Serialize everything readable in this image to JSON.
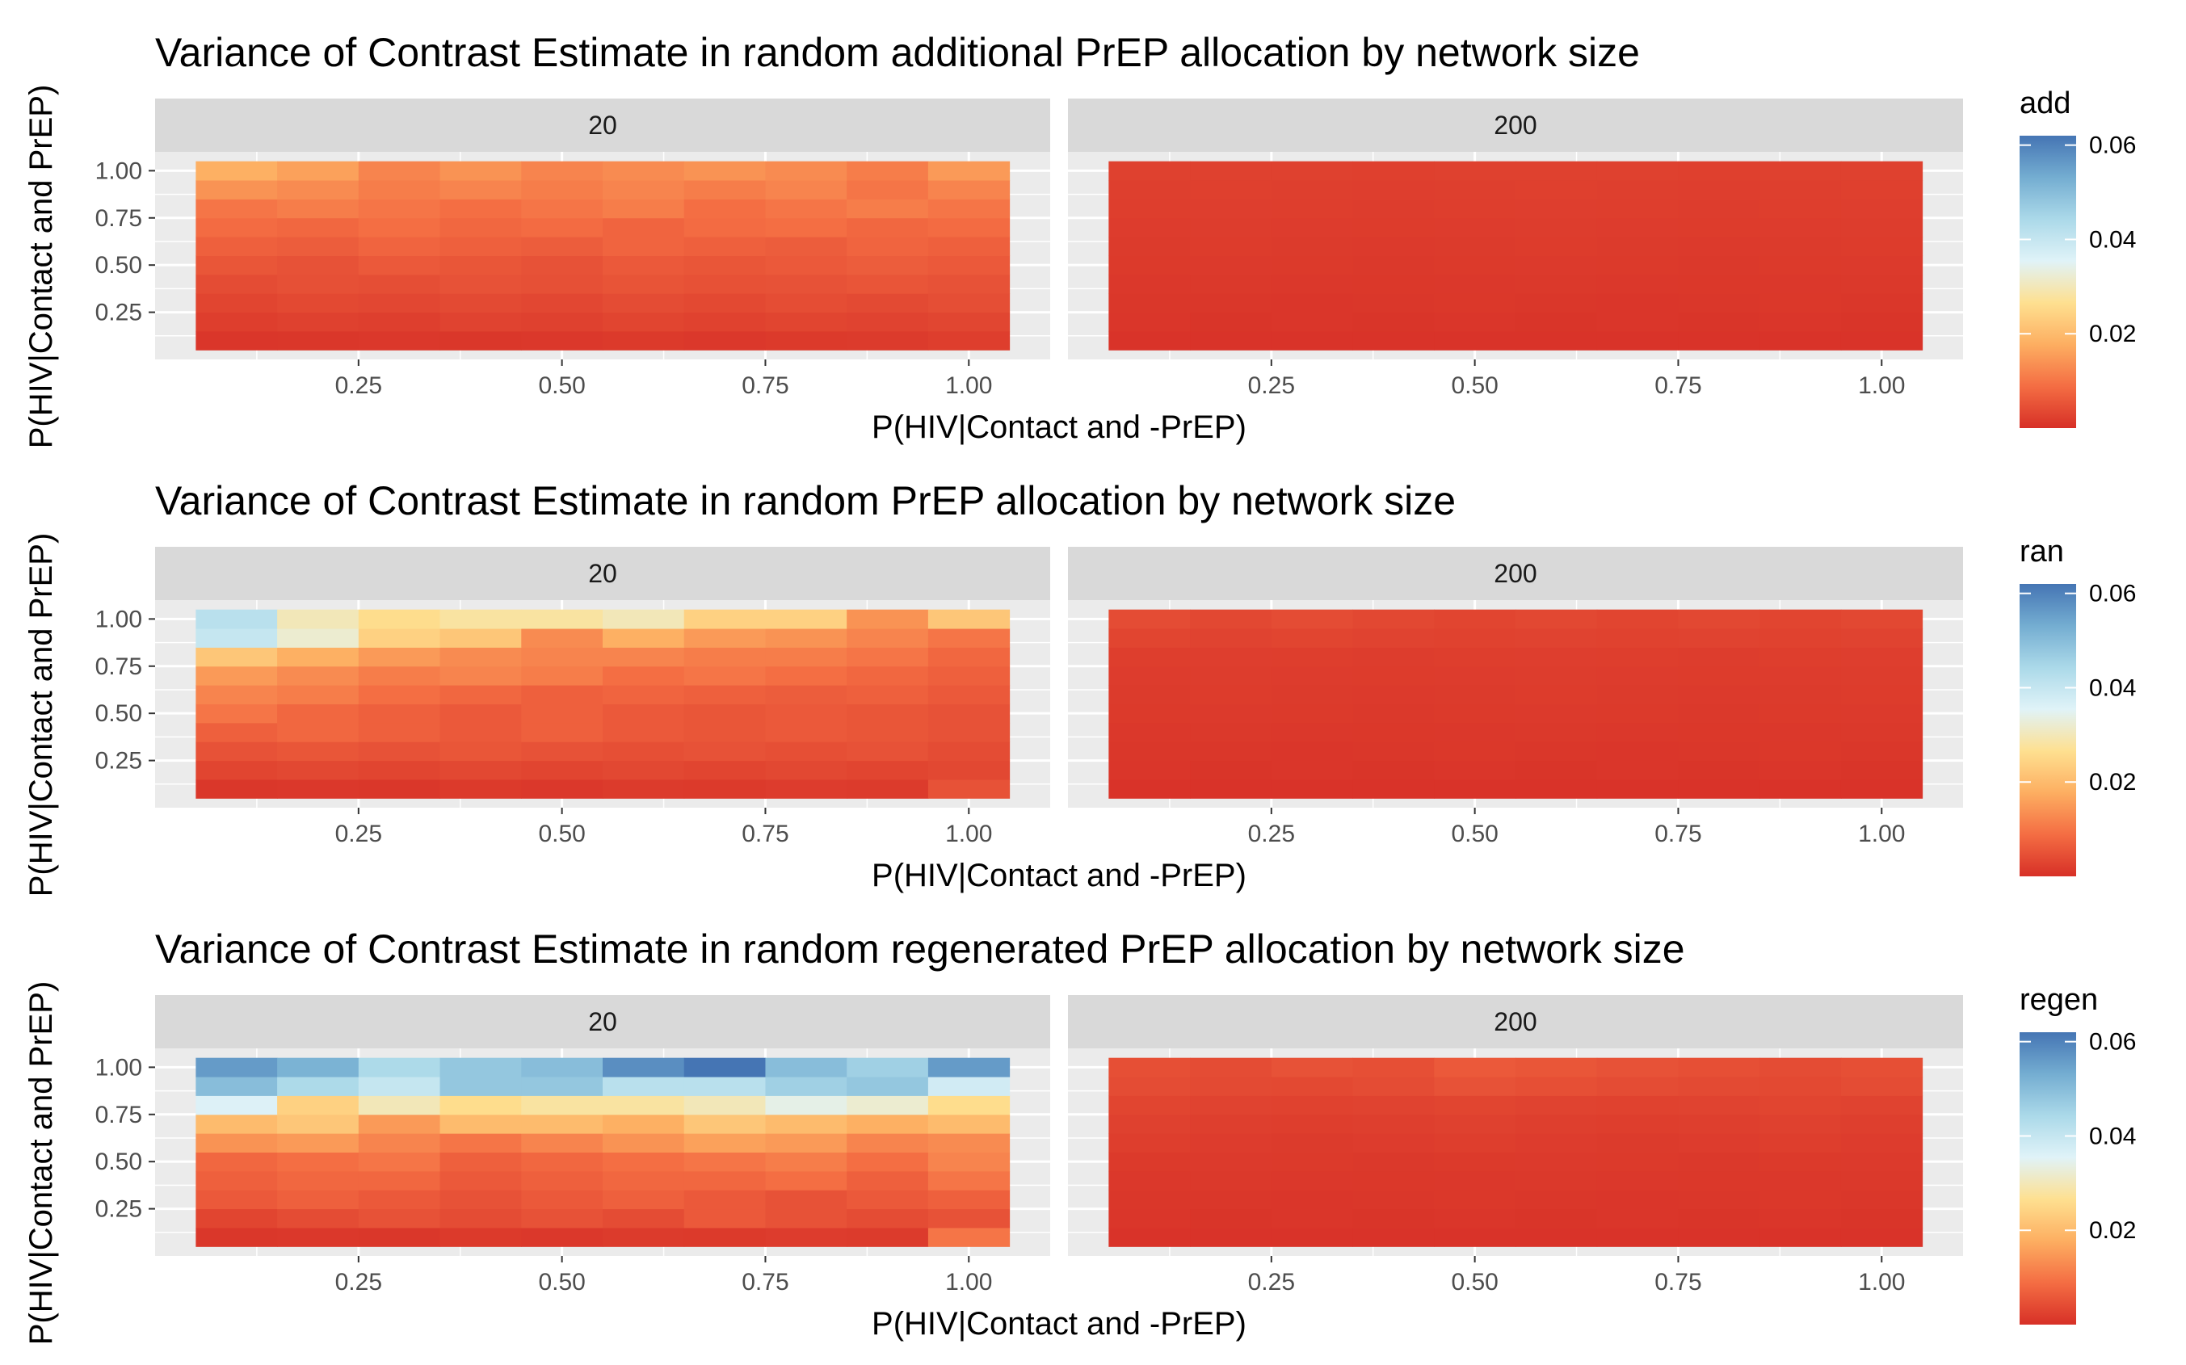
{
  "chart_data": [
    {
      "type": "heatmap",
      "title": "Variance of Contrast Estimate in random additional PrEP allocation by network size",
      "xlabel": "P(HIV|Contact and -PrEP)",
      "ylabel": "P(HIV|Contact and PrEP)",
      "facets": [
        "20",
        "200"
      ],
      "x_ticks": [
        "0.25",
        "0.50",
        "0.75",
        "1.00"
      ],
      "y_ticks": [
        "0.25",
        "0.50",
        "0.75",
        "1.00"
      ],
      "x_values": [
        0.1,
        0.2,
        0.3,
        0.4,
        0.5,
        0.6,
        0.7,
        0.8,
        0.9,
        1.0
      ],
      "y_values": [
        0.1,
        0.2,
        0.3,
        0.4,
        0.5,
        0.6,
        0.7,
        0.8,
        0.9,
        1.0
      ],
      "xlim": [
        0.0,
        1.1
      ],
      "ylim": [
        0.0,
        1.1
      ],
      "legend": {
        "title": "add",
        "ticks": [
          "0.02",
          "0.04",
          "0.06"
        ],
        "tick_values": [
          0.02,
          0.04,
          0.06
        ],
        "range": [
          0.0,
          0.062
        ]
      },
      "z": {
        "20": [
          [
            0.0008,
            0.001,
            0.0012,
            0.001,
            0.0012,
            0.0014,
            0.0012,
            0.0014,
            0.0016,
            0.002
          ],
          [
            0.002,
            0.0024,
            0.0022,
            0.0028,
            0.0024,
            0.003,
            0.0026,
            0.003,
            0.0028,
            0.0032
          ],
          [
            0.003,
            0.0036,
            0.0034,
            0.0038,
            0.0034,
            0.004,
            0.0036,
            0.0042,
            0.0038,
            0.0044
          ],
          [
            0.004,
            0.0046,
            0.0044,
            0.005,
            0.0046,
            0.0052,
            0.0048,
            0.005,
            0.0054,
            0.005
          ],
          [
            0.0055,
            0.005,
            0.006,
            0.0055,
            0.005,
            0.006,
            0.0055,
            0.006,
            0.0065,
            0.006
          ],
          [
            0.007,
            0.0065,
            0.0075,
            0.007,
            0.0065,
            0.0075,
            0.007,
            0.0065,
            0.0075,
            0.007
          ],
          [
            0.0085,
            0.008,
            0.009,
            0.008,
            0.0085,
            0.0075,
            0.0085,
            0.009,
            0.008,
            0.0085
          ],
          [
            0.01,
            0.011,
            0.01,
            0.009,
            0.01,
            0.011,
            0.009,
            0.01,
            0.011,
            0.01
          ],
          [
            0.014,
            0.013,
            0.011,
            0.012,
            0.011,
            0.012,
            0.011,
            0.012,
            0.01,
            0.012
          ],
          [
            0.018,
            0.016,
            0.012,
            0.014,
            0.012,
            0.013,
            0.014,
            0.013,
            0.011,
            0.015
          ]
        ],
        "200": [
          [
            0.0005,
            0.0005,
            0.0005,
            0.0005,
            0.0005,
            0.0005,
            0.0005,
            0.0005,
            0.0005,
            0.0005
          ],
          [
            0.0008,
            0.0007,
            0.0008,
            0.0007,
            0.0008,
            0.0007,
            0.0008,
            0.0007,
            0.0008,
            0.0007
          ],
          [
            0.001,
            0.001,
            0.0009,
            0.001,
            0.0011,
            0.001,
            0.0009,
            0.001,
            0.0011,
            0.001
          ],
          [
            0.0012,
            0.0013,
            0.0012,
            0.0011,
            0.0012,
            0.0013,
            0.0012,
            0.0011,
            0.0012,
            0.0013
          ],
          [
            0.0014,
            0.0015,
            0.0014,
            0.0013,
            0.0014,
            0.0015,
            0.0014,
            0.0013,
            0.0014,
            0.0015
          ],
          [
            0.0016,
            0.0017,
            0.0016,
            0.0015,
            0.0016,
            0.0017,
            0.0016,
            0.0015,
            0.0016,
            0.0017
          ],
          [
            0.0018,
            0.0019,
            0.0018,
            0.0017,
            0.0018,
            0.0019,
            0.0018,
            0.0017,
            0.0018,
            0.0019
          ],
          [
            0.002,
            0.0021,
            0.002,
            0.0019,
            0.002,
            0.0021,
            0.002,
            0.0019,
            0.002,
            0.0021
          ],
          [
            0.0022,
            0.0023,
            0.0022,
            0.0021,
            0.0022,
            0.0023,
            0.0022,
            0.0021,
            0.0022,
            0.0023
          ],
          [
            0.0024,
            0.0025,
            0.0024,
            0.0023,
            0.0024,
            0.0025,
            0.0024,
            0.0023,
            0.0024,
            0.0025
          ]
        ]
      }
    },
    {
      "type": "heatmap",
      "title": "Variance of Contrast Estimate in random PrEP allocation by network size",
      "xlabel": "P(HIV|Contact and -PrEP)",
      "ylabel": "P(HIV|Contact and PrEP)",
      "facets": [
        "20",
        "200"
      ],
      "x_ticks": [
        "0.25",
        "0.50",
        "0.75",
        "1.00"
      ],
      "y_ticks": [
        "0.25",
        "0.50",
        "0.75",
        "1.00"
      ],
      "x_values": [
        0.1,
        0.2,
        0.3,
        0.4,
        0.5,
        0.6,
        0.7,
        0.8,
        0.9,
        1.0
      ],
      "y_values": [
        0.1,
        0.2,
        0.3,
        0.4,
        0.5,
        0.6,
        0.7,
        0.8,
        0.9,
        1.0
      ],
      "xlim": [
        0.0,
        1.1
      ],
      "ylim": [
        0.0,
        1.1
      ],
      "legend": {
        "title": "ran",
        "ticks": [
          "0.02",
          "0.04",
          "0.06"
        ],
        "tick_values": [
          0.02,
          0.04,
          0.06
        ],
        "range": [
          0.0,
          0.062
        ]
      },
      "z": {
        "20": [
          [
            0.001,
            0.0012,
            0.001,
            0.0014,
            0.0012,
            0.0016,
            0.0014,
            0.0018,
            0.0016,
            0.005
          ],
          [
            0.003,
            0.0035,
            0.003,
            0.0035,
            0.003,
            0.0035,
            0.003,
            0.0035,
            0.003,
            0.0035
          ],
          [
            0.005,
            0.0055,
            0.005,
            0.0055,
            0.005,
            0.0045,
            0.005,
            0.0045,
            0.005,
            0.004
          ],
          [
            0.007,
            0.008,
            0.007,
            0.006,
            0.007,
            0.006,
            0.0055,
            0.006,
            0.0055,
            0.005
          ],
          [
            0.01,
            0.008,
            0.007,
            0.006,
            0.007,
            0.006,
            0.0055,
            0.006,
            0.0055,
            0.005
          ],
          [
            0.012,
            0.011,
            0.009,
            0.008,
            0.007,
            0.0075,
            0.007,
            0.0065,
            0.007,
            0.006
          ],
          [
            0.015,
            0.013,
            0.011,
            0.012,
            0.011,
            0.009,
            0.01,
            0.009,
            0.008,
            0.007
          ],
          [
            0.022,
            0.018,
            0.015,
            0.013,
            0.012,
            0.012,
            0.011,
            0.011,
            0.01,
            0.008
          ],
          [
            0.04,
            0.032,
            0.024,
            0.022,
            0.013,
            0.018,
            0.015,
            0.014,
            0.012,
            0.01
          ],
          [
            0.042,
            0.03,
            0.026,
            0.028,
            0.028,
            0.03,
            0.024,
            0.024,
            0.014,
            0.022
          ]
        ],
        "200": [
          [
            0.0005,
            0.0005,
            0.0005,
            0.0005,
            0.0005,
            0.0005,
            0.0005,
            0.0005,
            0.0005,
            0.0005
          ],
          [
            0.0008,
            0.0007,
            0.0008,
            0.0007,
            0.0008,
            0.0007,
            0.0008,
            0.0007,
            0.0008,
            0.0007
          ],
          [
            0.001,
            0.001,
            0.0009,
            0.001,
            0.0011,
            0.001,
            0.0009,
            0.001,
            0.0011,
            0.001
          ],
          [
            0.0012,
            0.0013,
            0.0012,
            0.0011,
            0.0012,
            0.0013,
            0.0012,
            0.0011,
            0.0012,
            0.0013
          ],
          [
            0.0014,
            0.0015,
            0.0014,
            0.0013,
            0.0014,
            0.0015,
            0.0014,
            0.0013,
            0.0014,
            0.0015
          ],
          [
            0.0016,
            0.0017,
            0.0016,
            0.0015,
            0.0016,
            0.0017,
            0.0016,
            0.0015,
            0.0016,
            0.0017
          ],
          [
            0.0018,
            0.0019,
            0.0018,
            0.0017,
            0.0018,
            0.0019,
            0.0018,
            0.0017,
            0.0018,
            0.0019
          ],
          [
            0.002,
            0.0021,
            0.002,
            0.0019,
            0.002,
            0.0021,
            0.002,
            0.0019,
            0.002,
            0.0021
          ],
          [
            0.003,
            0.0028,
            0.003,
            0.0028,
            0.0026,
            0.0028,
            0.0026,
            0.0028,
            0.0026,
            0.0028
          ],
          [
            0.004,
            0.0035,
            0.004,
            0.0035,
            0.003,
            0.0035,
            0.003,
            0.0035,
            0.003,
            0.0035
          ]
        ]
      }
    },
    {
      "type": "heatmap",
      "title": "Variance of Contrast Estimate in random regenerated PrEP allocation by network size",
      "xlabel": "P(HIV|Contact and -PrEP)",
      "ylabel": "P(HIV|Contact and PrEP)",
      "facets": [
        "20",
        "200"
      ],
      "x_ticks": [
        "0.25",
        "0.50",
        "0.75",
        "1.00"
      ],
      "y_ticks": [
        "0.25",
        "0.50",
        "0.75",
        "1.00"
      ],
      "x_values": [
        0.1,
        0.2,
        0.3,
        0.4,
        0.5,
        0.6,
        0.7,
        0.8,
        0.9,
        1.0
      ],
      "y_values": [
        0.1,
        0.2,
        0.3,
        0.4,
        0.5,
        0.6,
        0.7,
        0.8,
        0.9,
        1.0
      ],
      "xlim": [
        0.0,
        1.1
      ],
      "ylim": [
        0.0,
        1.1
      ],
      "legend": {
        "title": "regen",
        "ticks": [
          "0.02",
          "0.04",
          "0.06"
        ],
        "tick_values": [
          0.02,
          0.04,
          0.06
        ],
        "range": [
          0.0,
          0.062
        ]
      },
      "z": {
        "20": [
          [
            0.001,
            0.0012,
            0.001,
            0.0014,
            0.0012,
            0.0016,
            0.0014,
            0.0018,
            0.0016,
            0.01
          ],
          [
            0.003,
            0.004,
            0.005,
            0.004,
            0.005,
            0.004,
            0.006,
            0.005,
            0.004,
            0.005
          ],
          [
            0.006,
            0.007,
            0.006,
            0.005,
            0.006,
            0.007,
            0.006,
            0.005,
            0.006,
            0.007
          ],
          [
            0.007,
            0.008,
            0.008,
            0.006,
            0.007,
            0.008,
            0.008,
            0.009,
            0.007,
            0.01
          ],
          [
            0.008,
            0.009,
            0.01,
            0.007,
            0.008,
            0.009,
            0.01,
            0.011,
            0.009,
            0.012
          ],
          [
            0.014,
            0.015,
            0.012,
            0.01,
            0.012,
            0.014,
            0.016,
            0.015,
            0.012,
            0.013
          ],
          [
            0.02,
            0.022,
            0.015,
            0.02,
            0.02,
            0.018,
            0.022,
            0.02,
            0.018,
            0.02
          ],
          [
            0.036,
            0.024,
            0.03,
            0.026,
            0.028,
            0.028,
            0.03,
            0.034,
            0.032,
            0.026
          ],
          [
            0.05,
            0.044,
            0.04,
            0.048,
            0.048,
            0.042,
            0.042,
            0.046,
            0.048,
            0.038
          ],
          [
            0.056,
            0.052,
            0.044,
            0.048,
            0.05,
            0.058,
            0.062,
            0.05,
            0.046,
            0.056
          ]
        ],
        "200": [
          [
            0.0005,
            0.0005,
            0.0005,
            0.0005,
            0.0005,
            0.0005,
            0.0005,
            0.0005,
            0.0005,
            0.0005
          ],
          [
            0.0008,
            0.0007,
            0.0008,
            0.0007,
            0.0008,
            0.0007,
            0.0008,
            0.0007,
            0.0008,
            0.0007
          ],
          [
            0.001,
            0.001,
            0.0009,
            0.001,
            0.0011,
            0.001,
            0.0009,
            0.001,
            0.0011,
            0.001
          ],
          [
            0.0012,
            0.0013,
            0.0012,
            0.0011,
            0.0012,
            0.0013,
            0.0012,
            0.0011,
            0.0012,
            0.0013
          ],
          [
            0.0014,
            0.0015,
            0.0014,
            0.0013,
            0.0014,
            0.0015,
            0.0014,
            0.0013,
            0.0014,
            0.0015
          ],
          [
            0.002,
            0.0018,
            0.0016,
            0.0018,
            0.002,
            0.0018,
            0.0016,
            0.0018,
            0.002,
            0.0018
          ],
          [
            0.0024,
            0.0022,
            0.002,
            0.0022,
            0.0024,
            0.0022,
            0.002,
            0.0022,
            0.0024,
            0.0022
          ],
          [
            0.003,
            0.0028,
            0.0026,
            0.0028,
            0.003,
            0.0028,
            0.0026,
            0.0028,
            0.003,
            0.0028
          ],
          [
            0.004,
            0.0038,
            0.0036,
            0.004,
            0.005,
            0.0045,
            0.004,
            0.0038,
            0.0036,
            0.004
          ],
          [
            0.0045,
            0.004,
            0.005,
            0.0045,
            0.006,
            0.0055,
            0.005,
            0.0045,
            0.004,
            0.0045
          ]
        ]
      }
    }
  ],
  "colors": {
    "scale": [
      "#D73027",
      "#F46D43",
      "#FDAE61",
      "#FEE090",
      "#E0F3F8",
      "#ABD9E9",
      "#74ADD1",
      "#4575B4"
    ],
    "panel_background": "#EBEBEB",
    "strip_background": "#D9D9D9",
    "grid": "#FFFFFF"
  }
}
